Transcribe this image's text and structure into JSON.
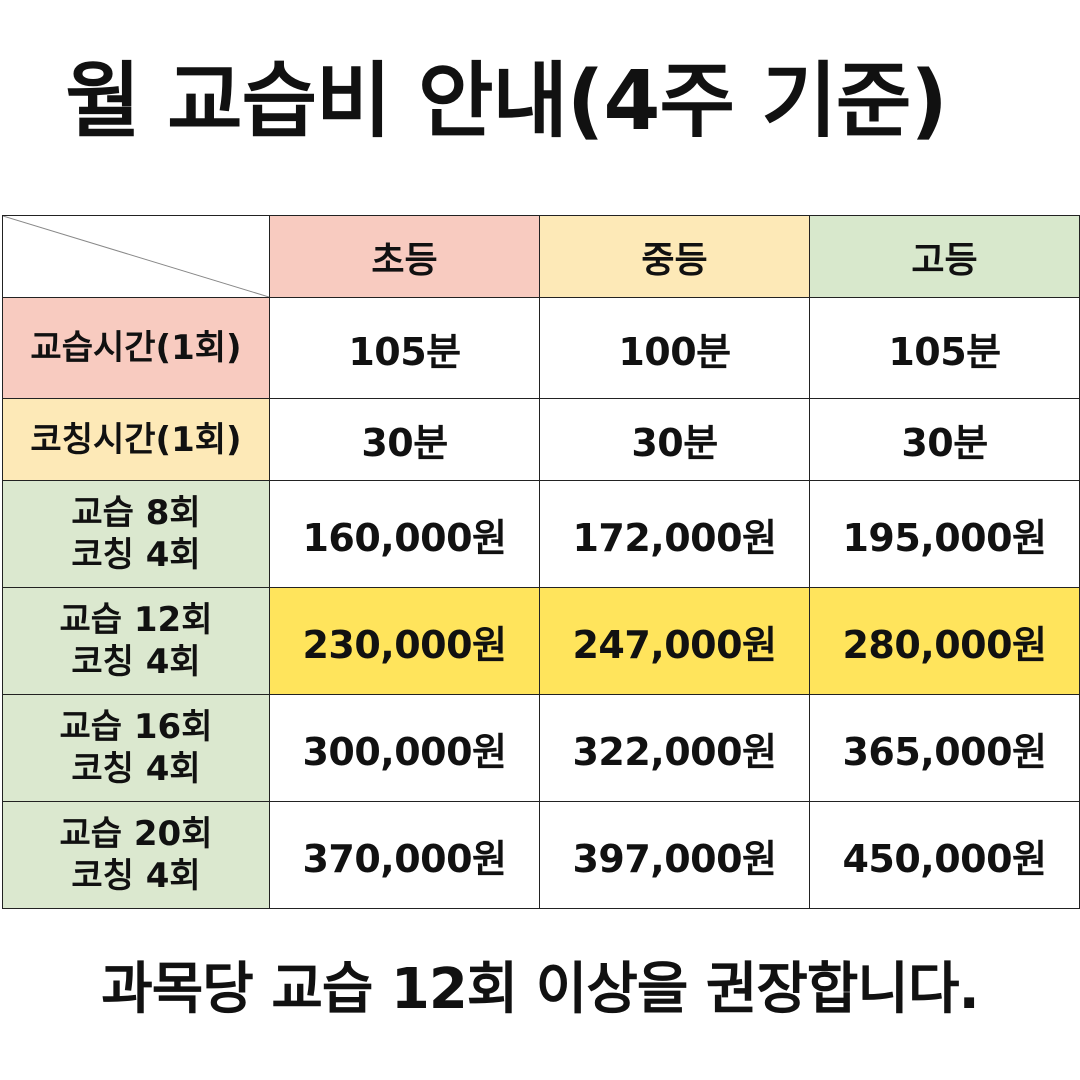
{
  "title": "월 교습비 안내(4주 기준)",
  "columns": [
    {
      "label": "초등",
      "color": "#f8cbc0"
    },
    {
      "label": "중등",
      "color": "#fde9b7"
    },
    {
      "label": "고등",
      "color": "#d8e8cc"
    }
  ],
  "rows": [
    {
      "label_lines": [
        "교습시간(1회)"
      ],
      "label_color": "#f8cbc0",
      "values": [
        "105분",
        "100분",
        "105분"
      ],
      "highlight": false
    },
    {
      "label_lines": [
        "코칭시간(1회)"
      ],
      "label_color": "#fde9b7",
      "values": [
        "30분",
        "30분",
        "30분"
      ],
      "highlight": false
    },
    {
      "label_lines": [
        "교습 8회",
        "코칭 4회"
      ],
      "label_color": "#dbe8cf",
      "values": [
        "160,000원",
        "172,000원",
        "195,000원"
      ],
      "highlight": false
    },
    {
      "label_lines": [
        "교습 12회",
        "코칭 4회"
      ],
      "label_color": "#dbe8cf",
      "values": [
        "230,000원",
        "247,000원",
        "280,000원"
      ],
      "highlight": true
    },
    {
      "label_lines": [
        "교습 16회",
        "코칭 4회"
      ],
      "label_color": "#dbe8cf",
      "values": [
        "300,000원",
        "322,000원",
        "365,000원"
      ],
      "highlight": false
    },
    {
      "label_lines": [
        "교습 20회",
        "코칭 4회"
      ],
      "label_color": "#dbe8cf",
      "values": [
        "370,000원",
        "397,000원",
        "450,000원"
      ],
      "highlight": false
    }
  ],
  "highlight_color": "#ffe45c",
  "footer": "과목당 교습 12회 이상을 권장합니다."
}
